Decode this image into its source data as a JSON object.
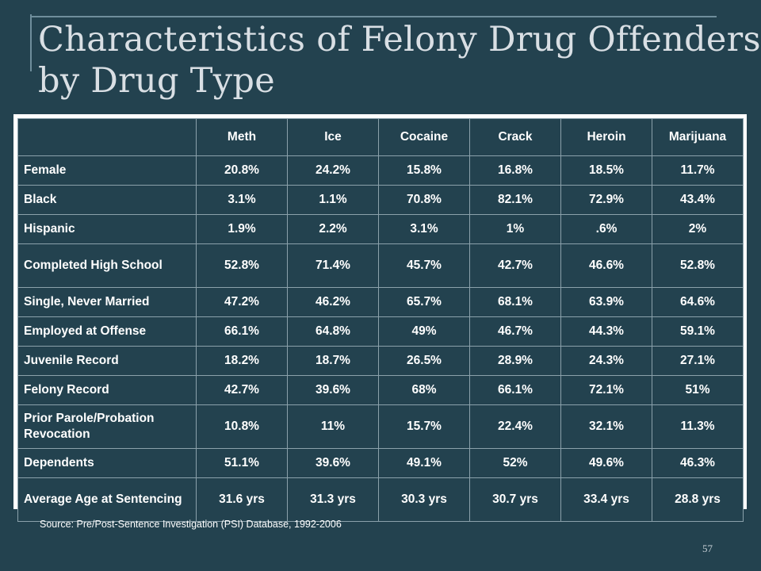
{
  "title": {
    "line1": "Characteristics of Felony Drug Offenders",
    "line2": "by Drug Type"
  },
  "table": {
    "corner": "",
    "columns": [
      "Meth",
      "Ice",
      "Cocaine",
      "Crack",
      "Heroin",
      "Marijuana"
    ],
    "rows": [
      {
        "label": "Female",
        "values": [
          "20.8%",
          "24.2%",
          "15.8%",
          "16.8%",
          "18.5%",
          "11.7%"
        ]
      },
      {
        "label": "Black",
        "values": [
          "3.1%",
          "1.1%",
          "70.8%",
          "82.1%",
          "72.9%",
          "43.4%"
        ]
      },
      {
        "label": "Hispanic",
        "values": [
          "1.9%",
          "2.2%",
          "3.1%",
          "1%",
          ".6%",
          "2%"
        ]
      },
      {
        "label": "Completed High School",
        "values": [
          "52.8%",
          "71.4%",
          "45.7%",
          "42.7%",
          "46.6%",
          "52.8%"
        ]
      },
      {
        "label": "Single, Never Married",
        "values": [
          "47.2%",
          "46.2%",
          "65.7%",
          "68.1%",
          "63.9%",
          "64.6%"
        ]
      },
      {
        "label": "Employed at Offense",
        "values": [
          "66.1%",
          "64.8%",
          "49%",
          "46.7%",
          "44.3%",
          "59.1%"
        ]
      },
      {
        "label": "Juvenile Record",
        "values": [
          "18.2%",
          "18.7%",
          "26.5%",
          "28.9%",
          "24.3%",
          "27.1%"
        ]
      },
      {
        "label": "Felony Record",
        "values": [
          "42.7%",
          "39.6%",
          "68%",
          "66.1%",
          "72.1%",
          "51%"
        ]
      },
      {
        "label": "Prior Parole/Probation Revocation",
        "values": [
          "10.8%",
          "11%",
          "15.7%",
          "22.4%",
          "32.1%",
          "11.3%"
        ]
      },
      {
        "label": "Dependents",
        "values": [
          "51.1%",
          "39.6%",
          "49.1%",
          "52%",
          "49.6%",
          "46.3%"
        ]
      },
      {
        "label": "Average Age at Sentencing",
        "values": [
          "31.6 yrs",
          "31.3 yrs",
          "30.3 yrs",
          "30.7 yrs",
          "33.4 yrs",
          "28.8 yrs"
        ]
      }
    ]
  },
  "source": "Source:  Pre/Post-Sentence Investigation (PSI) Database, 1992-2006",
  "page_number": "57",
  "colors": {
    "background": "#23424f",
    "title_text": "#d9dfe4",
    "table_border": "#ffffff",
    "cell_text": "#ffffff"
  }
}
